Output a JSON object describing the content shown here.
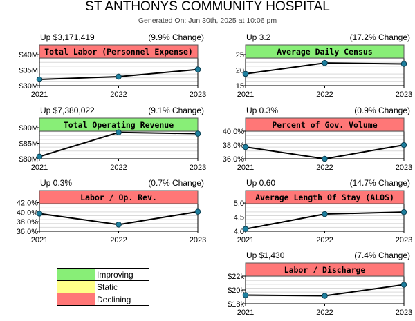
{
  "header": {
    "title": "ST ANTHONYS COMMUNITY HOSPITAL",
    "subtitle": "Generated On: Jun 30th, 2025 at 10:06 pm"
  },
  "colors": {
    "improving": "#88ee77",
    "static": "#ffff88",
    "declining": "#ff7777",
    "line": "#000000",
    "marker": "#1e7f9e"
  },
  "legend": {
    "items": [
      {
        "label": "Improving",
        "color": "#88ee77"
      },
      {
        "label": "Static",
        "color": "#ffff88"
      },
      {
        "label": "Declining",
        "color": "#ff7777"
      }
    ]
  },
  "chart_data": [
    {
      "type": "line",
      "title": "Total Labor (Personnel Expense)",
      "change_left": "Up $3,171,419",
      "change_right": "(9.9% Change)",
      "status": "declining",
      "x": [
        "2021",
        "2022",
        "2023"
      ],
      "values": [
        32000000,
        32900000,
        35200000
      ],
      "ylim": [
        30000000,
        40000000
      ],
      "yticks": [
        "$40M",
        "$35M",
        "$30M"
      ],
      "ytick_values": [
        40000000,
        35000000,
        30000000
      ]
    },
    {
      "type": "line",
      "title": "Average Daily Census",
      "change_left": "Up 3.2",
      "change_right": "(17.2% Change)",
      "status": "improving",
      "x": [
        "2021",
        "2022",
        "2023"
      ],
      "values": [
        18.8,
        22.3,
        22.0
      ],
      "ylim": [
        15,
        25
      ],
      "yticks": [
        "25",
        "20",
        "15"
      ],
      "ytick_values": [
        25,
        20,
        15
      ]
    },
    {
      "type": "line",
      "title": "Total Operating Revenue",
      "change_left": "Up $7,380,022",
      "change_right": "(9.1% Change)",
      "status": "improving",
      "x": [
        "2021",
        "2022",
        "2023"
      ],
      "values": [
        80700000,
        88500000,
        88100000
      ],
      "ylim": [
        80000000,
        90000000
      ],
      "yticks": [
        "$90M",
        "$85M",
        "$80M"
      ],
      "ytick_values": [
        90000000,
        85000000,
        80000000
      ]
    },
    {
      "type": "line",
      "title": "Percent of Gov. Volume",
      "change_left": "Up 0.3%",
      "change_right": "(0.9% Change)",
      "status": "declining",
      "x": [
        "2021",
        "2022",
        "2023"
      ],
      "values": [
        37.7,
        36.0,
        38.0
      ],
      "ylim": [
        36,
        40.5
      ],
      "yticks": [
        "40.0%",
        "38.0%",
        "36.0%"
      ],
      "ytick_values": [
        40,
        38,
        36
      ]
    },
    {
      "type": "line",
      "title": "Labor / Op. Rev.",
      "change_left": "Up 0.3%",
      "change_right": "(0.7% Change)",
      "status": "declining",
      "x": [
        "2021",
        "2022",
        "2023"
      ],
      "values": [
        39.7,
        37.4,
        40.1
      ],
      "ylim": [
        36,
        42.5
      ],
      "yticks": [
        "42.0%",
        "40.0%",
        "38.0%",
        "36.0%"
      ],
      "ytick_values": [
        42,
        40,
        38,
        36
      ]
    },
    {
      "type": "line",
      "title": "Average Length Of Stay (ALOS)",
      "change_left": "Up 0.60",
      "change_right": "(14.7% Change)",
      "status": "declining",
      "x": [
        "2021",
        "2022",
        "2023"
      ],
      "values": [
        4.08,
        4.61,
        4.68
      ],
      "ylim": [
        4.0,
        5.1
      ],
      "yticks": [
        "5.0",
        "4.5",
        "4.0"
      ],
      "ytick_values": [
        5.0,
        4.5,
        4.0
      ]
    },
    {
      "type": "line",
      "title": "Labor / Discharge",
      "change_left": "Up $1,430",
      "change_right": "(7.4% Change)",
      "status": "declining",
      "x": [
        "2021",
        "2022",
        "2023"
      ],
      "values": [
        19250,
        19150,
        20750
      ],
      "ylim": [
        18000,
        22500
      ],
      "yticks": [
        "$22k",
        "$20k",
        "$18k"
      ],
      "ytick_values": [
        22000,
        20000,
        18000
      ]
    }
  ]
}
